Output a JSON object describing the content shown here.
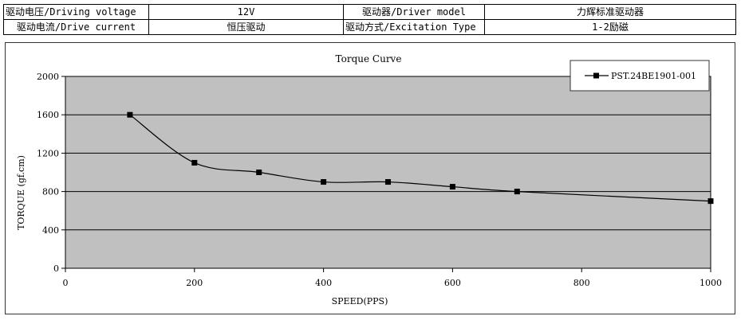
{
  "specs": {
    "row1": {
      "voltage_label": "驱动电压/Driving voltage",
      "voltage_value": "12V",
      "driver_label": "驱动器/Driver model",
      "driver_value": "力辉标准驱动器"
    },
    "row2": {
      "current_label": "驱动电流/Drive current",
      "current_value": "恒压驱动",
      "excitation_label": "驱动方式/Excitation Type",
      "excitation_value": "1-2励磁"
    }
  },
  "chart_data": {
    "type": "line",
    "title": "Torque Curve",
    "xlabel": "SPEED(PPS)",
    "ylabel": "TORQUE (gf.cm)",
    "xlim": [
      0,
      1000
    ],
    "ylim": [
      0,
      2000
    ],
    "xticks": [
      0,
      200,
      400,
      600,
      800,
      1000
    ],
    "yticks": [
      0,
      400,
      800,
      1200,
      1600,
      2000
    ],
    "grid": true,
    "legend_position": "top-right",
    "plot_background": "#c0c0c0",
    "series": [
      {
        "name": "PST.24BE1901-001",
        "color": "#000000",
        "marker": "square",
        "smooth": true,
        "x": [
          100,
          200,
          300,
          400,
          500,
          600,
          700,
          1000
        ],
        "y": [
          1600,
          1100,
          1000,
          900,
          900,
          850,
          800,
          700
        ]
      }
    ]
  }
}
